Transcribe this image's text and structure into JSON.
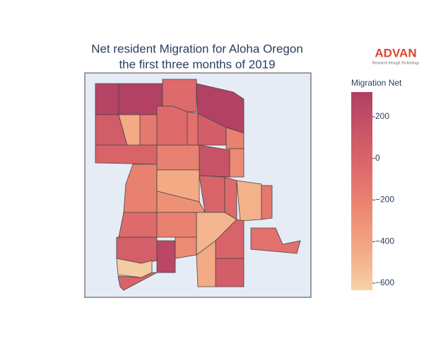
{
  "chart_data": {
    "type": "choropleth",
    "title": [
      "Net resident Migration for Aloha Oregon",
      "the first three months of 2019"
    ],
    "logo": {
      "name": "ADVAN",
      "tagline": "Research through Technology"
    },
    "colorbar_title": "Migration Net",
    "colorscale": [
      "#f6d2a9",
      "#f3aa84",
      "#ec8a73",
      "#e06b6b",
      "#c95567",
      "#b13f64"
    ],
    "clim": [
      -634,
      319
    ],
    "cticks": [
      {
        "value": 200,
        "label": "200"
      },
      0,
      {
        "value": -200,
        "label": "−200"
      },
      {
        "value": -400,
        "label": "−400"
      },
      {
        "value": -600,
        "label": "−600"
      }
    ],
    "values": [
      280,
      300,
      -50,
      300,
      60,
      -450,
      -150,
      -50,
      -100,
      50,
      -200,
      0,
      -200,
      150,
      -250,
      -200,
      -450,
      0,
      -50,
      -480,
      -150,
      -300,
      -500,
      -50,
      -200,
      40,
      -600,
      0,
      250,
      -250,
      0,
      50,
      -450,
      -100
    ]
  }
}
